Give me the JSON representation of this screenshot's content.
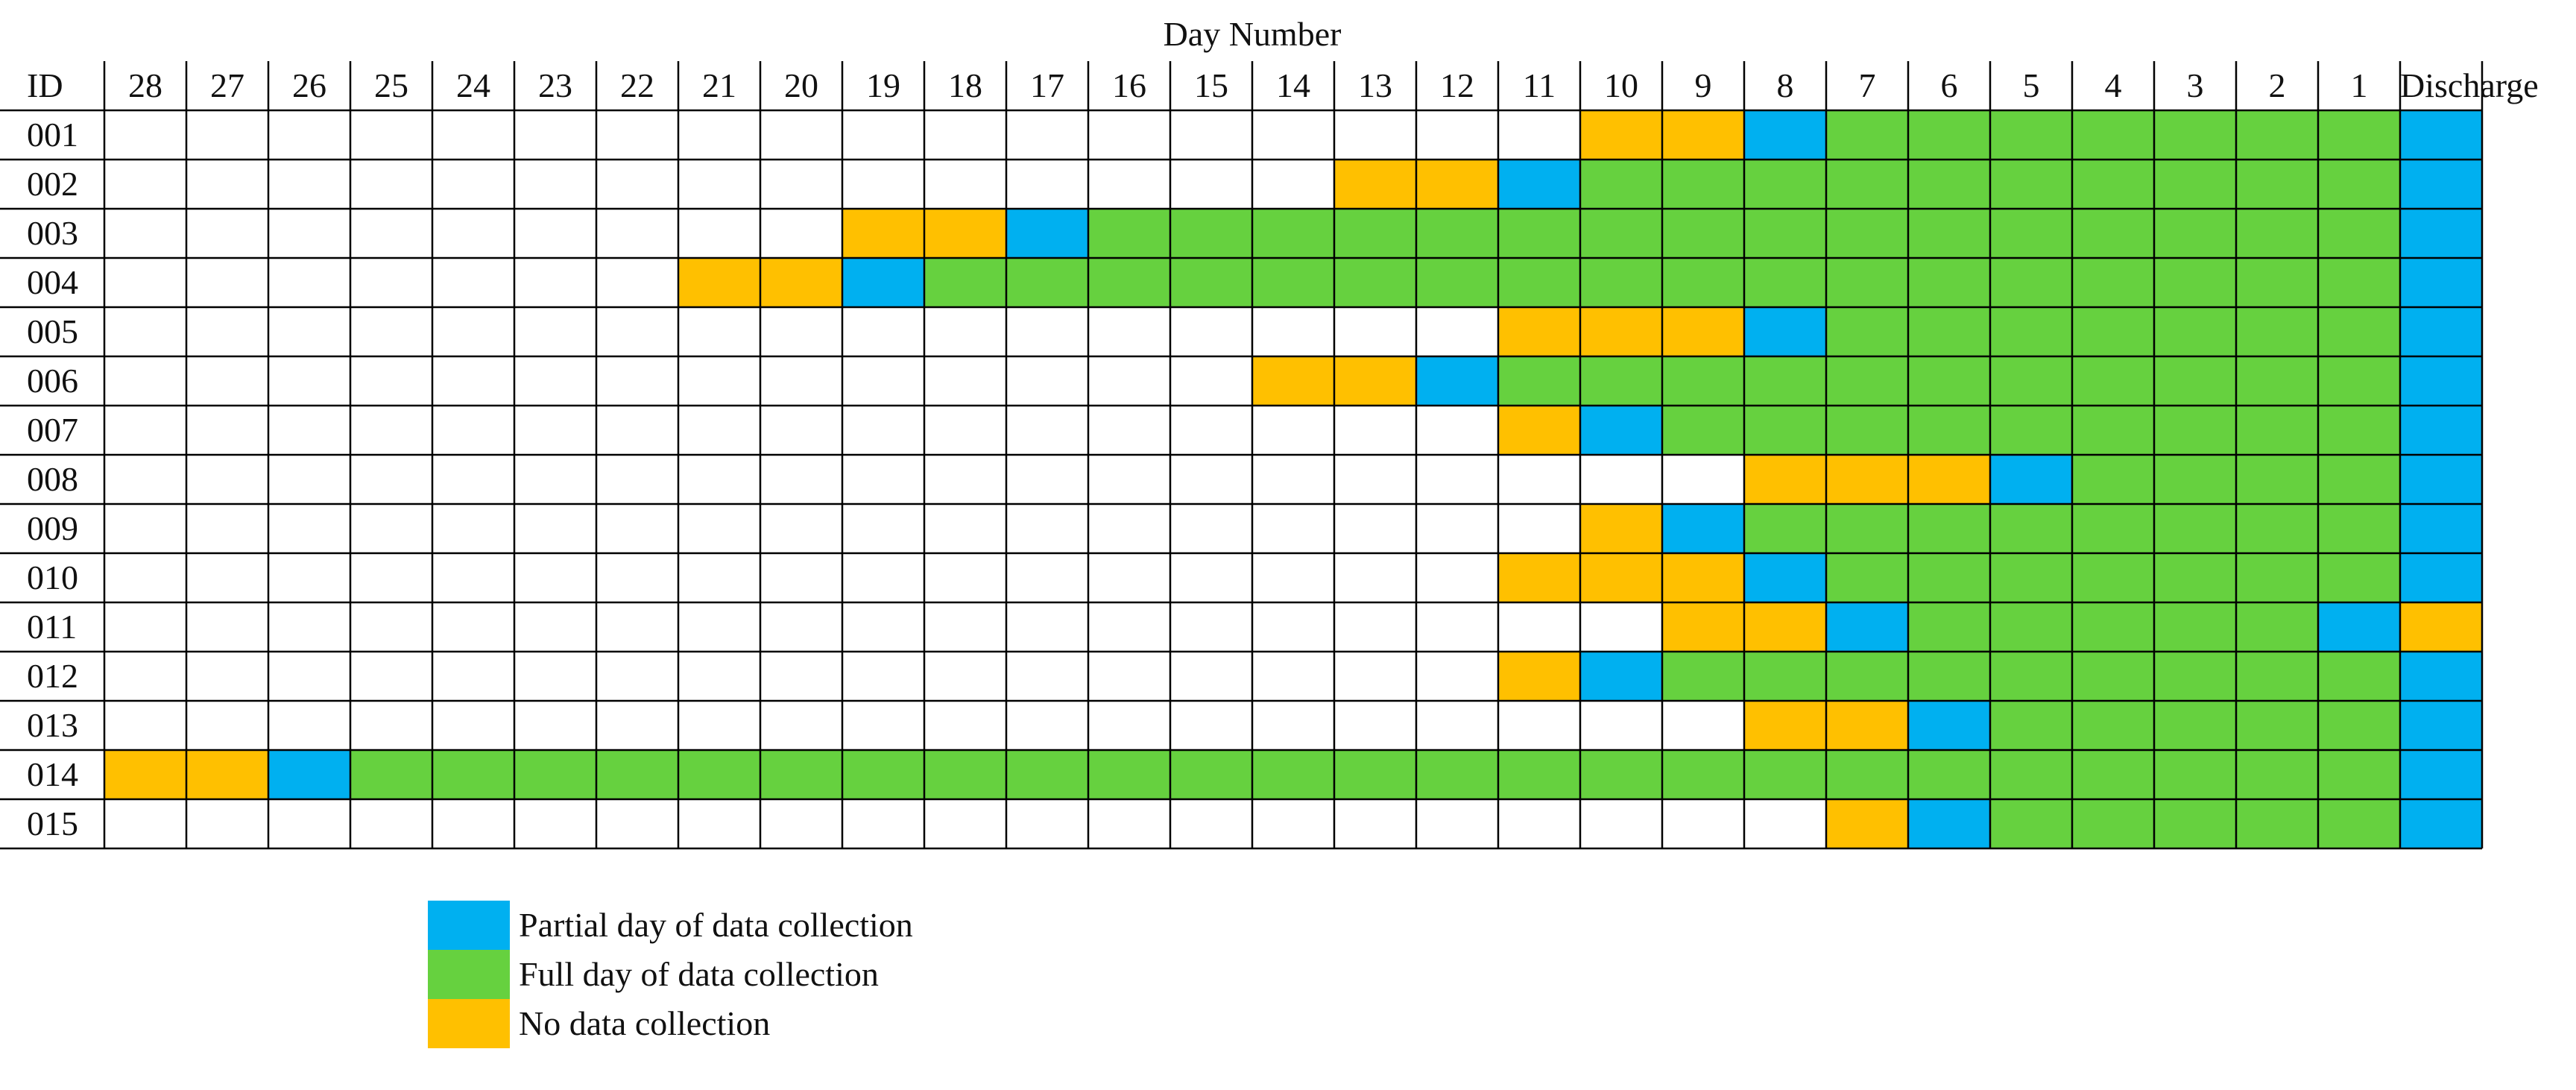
{
  "chart_data": {
    "type": "table",
    "title": "Day Number",
    "row_header": "ID",
    "columns": [
      "28",
      "27",
      "26",
      "25",
      "24",
      "23",
      "22",
      "21",
      "20",
      "19",
      "18",
      "17",
      "16",
      "15",
      "14",
      "13",
      "12",
      "11",
      "10",
      "9",
      "8",
      "7",
      "6",
      "5",
      "4",
      "3",
      "2",
      "1",
      "Discharge"
    ],
    "status_codes": {
      "0": "empty",
      "N": "No data collection",
      "P": "Partial day of data collection",
      "F": "Full day of data collection"
    },
    "rows": [
      {
        "id": "001",
        "cells": "000000000000000000NNPFFFFFFFP"
      },
      {
        "id": "002",
        "cells": "000000000000000NNPFFFFFFFFFFP"
      },
      {
        "id": "003",
        "cells": "000000000NNPFFFFFFFFFFFFFFFFP"
      },
      {
        "id": "004",
        "cells": "0000000NNPFFFFFFFFFFFFFFFFFFP"
      },
      {
        "id": "005",
        "cells": "00000000000000000NNNPFFFFFFFP"
      },
      {
        "id": "006",
        "cells": "00000000000000NNPFFFFFFFFFFFP"
      },
      {
        "id": "007",
        "cells": "00000000000000000NPFFFFFFFFFP"
      },
      {
        "id": "008",
        "cells": "00000000000000000000NNNPFFFFP"
      },
      {
        "id": "009",
        "cells": "000000000000000000NPFFFFFFFFP"
      },
      {
        "id": "010",
        "cells": "00000000000000000NNNPFFFFFFFP"
      },
      {
        "id": "011",
        "cells": "0000000000000000000NNPFFFFFPN"
      },
      {
        "id": "012",
        "cells": "00000000000000000NPFFFFFFFFFP"
      },
      {
        "id": "013",
        "cells": "00000000000000000000NNPFFFFFP"
      },
      {
        "id": "014",
        "cells": "NNPFFFFFFFFFFFFFFFFFFFFFFFFFP"
      },
      {
        "id": "015",
        "cells": "000000000000000000000NPFFFFFP"
      }
    ],
    "legend": [
      {
        "code": "P",
        "label": "Partial day of data collection",
        "color": "#00B0F0"
      },
      {
        "code": "F",
        "label": "Full day of data collection",
        "color": "#66D13F"
      },
      {
        "code": "N",
        "label": "No data collection",
        "color": "#FFC000"
      }
    ],
    "colors": {
      "grid": "#000000",
      "empty": "#FFFFFF"
    }
  }
}
